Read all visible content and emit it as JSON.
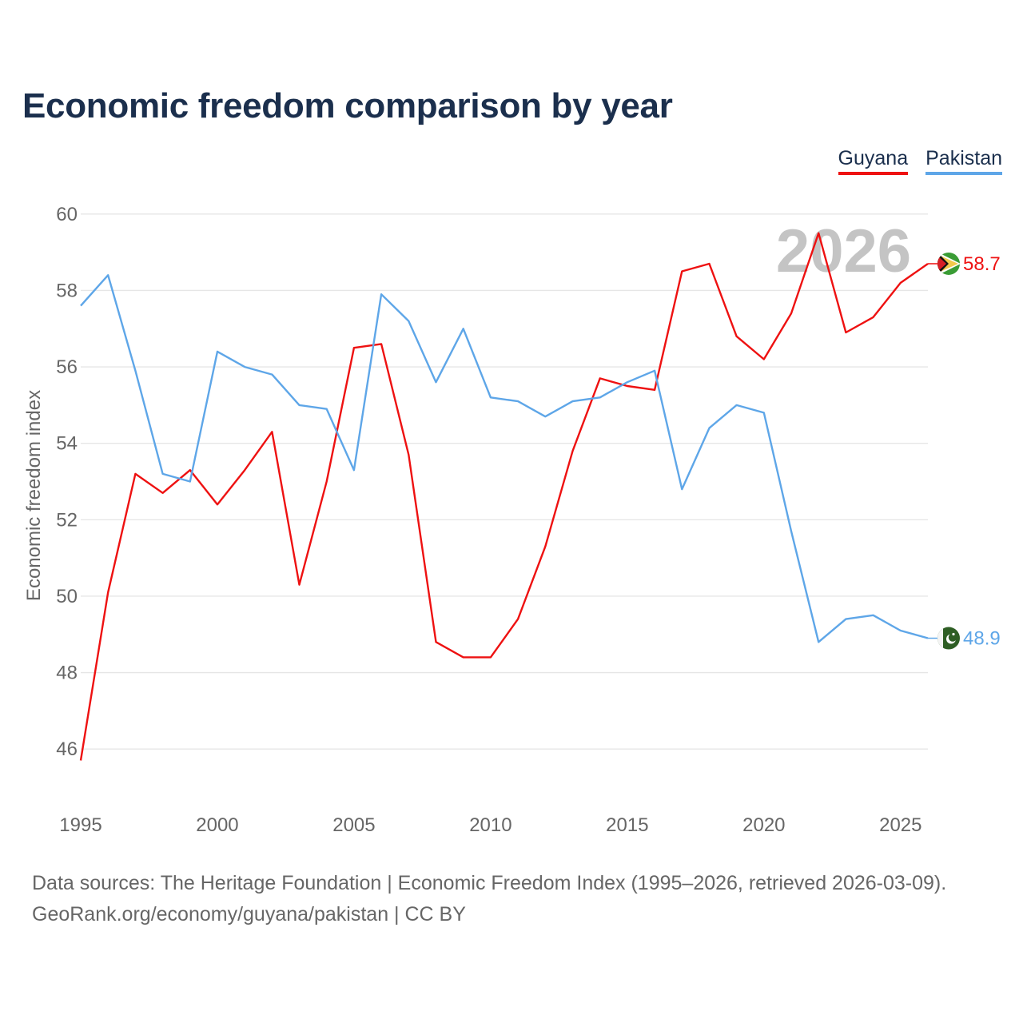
{
  "chart_data": {
    "type": "line",
    "title": "Economic freedom comparison by year",
    "xlabel": "",
    "ylabel": "Economic freedom index",
    "xlim": [
      1995,
      2026
    ],
    "ylim": [
      45,
      61
    ],
    "x_ticks": [
      "1995",
      "2000",
      "2005",
      "2010",
      "2015",
      "2020",
      "2025"
    ],
    "y_ticks": [
      "46",
      "48",
      "50",
      "52",
      "54",
      "56",
      "58",
      "60"
    ],
    "year_label": "2026",
    "x": [
      1995,
      1996,
      1997,
      1998,
      1999,
      2000,
      2001,
      2002,
      2003,
      2004,
      2005,
      2006,
      2007,
      2008,
      2009,
      2010,
      2011,
      2012,
      2013,
      2014,
      2015,
      2016,
      2017,
      2018,
      2019,
      2020,
      2021,
      2022,
      2023,
      2024,
      2025,
      2026
    ],
    "series": [
      {
        "name": "Guyana",
        "color": "#ee1111",
        "end_label": "58.7",
        "flag_icon": "guyana-flag-icon",
        "values": [
          45.7,
          50.1,
          53.2,
          52.7,
          53.3,
          52.4,
          53.3,
          54.3,
          50.3,
          53.0,
          56.5,
          56.6,
          53.7,
          48.8,
          48.4,
          48.4,
          49.4,
          51.3,
          53.8,
          55.7,
          55.5,
          55.4,
          58.5,
          58.7,
          56.8,
          56.2,
          57.4,
          59.5,
          56.9,
          57.3,
          58.2,
          58.7
        ]
      },
      {
        "name": "Pakistan",
        "color": "#5ea6e8",
        "end_label": "48.9",
        "flag_icon": "pakistan-flag-icon",
        "values": [
          57.6,
          58.4,
          55.9,
          53.2,
          53.0,
          56.4,
          56.0,
          55.8,
          55.0,
          54.9,
          53.3,
          57.9,
          57.2,
          55.6,
          57.0,
          55.2,
          55.1,
          54.7,
          55.1,
          55.2,
          55.6,
          55.9,
          52.8,
          54.4,
          55.0,
          54.8,
          51.7,
          48.8,
          49.4,
          49.5,
          49.1,
          48.9
        ]
      }
    ]
  },
  "source": {
    "line1": "Data sources: The Heritage Foundation | Economic Freedom Index (1995–2026, retrieved 2026-03-09).",
    "line2": "GeoRank.org/economy/guyana/pakistan | CC BY"
  }
}
